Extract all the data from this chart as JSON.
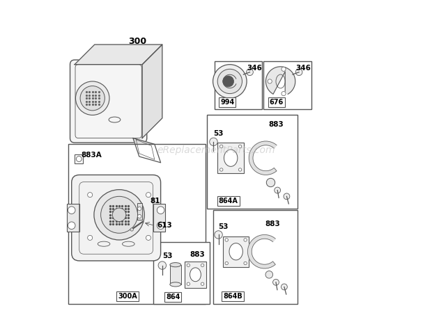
{
  "background_color": "#ffffff",
  "watermark": "eReplacementParts.com",
  "watermark_color": "#bbbbbb",
  "lc": "#555555",
  "lw": 0.8,
  "boxes": {
    "994": [
      0.495,
      0.655,
      0.155,
      0.155
    ],
    "676": [
      0.655,
      0.655,
      0.155,
      0.155
    ],
    "864A": [
      0.47,
      0.33,
      0.275,
      0.305
    ],
    "300A": [
      0.02,
      0.02,
      0.445,
      0.52
    ],
    "864": [
      0.295,
      0.02,
      0.185,
      0.2
    ],
    "864B": [
      0.49,
      0.02,
      0.275,
      0.305
    ]
  }
}
